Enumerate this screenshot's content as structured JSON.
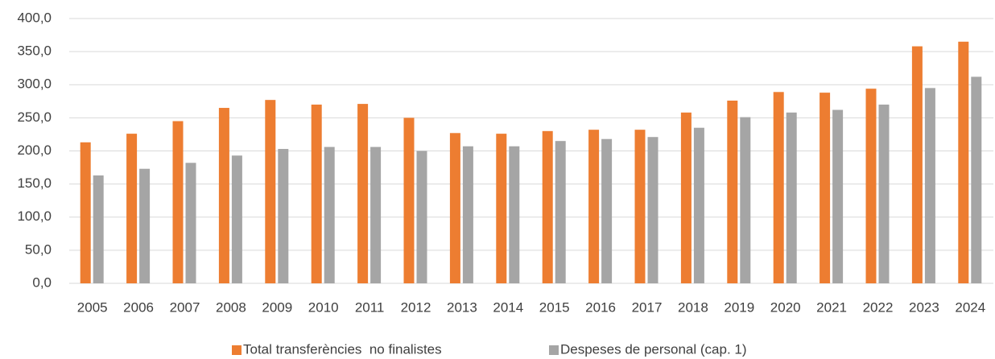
{
  "chart_data": {
    "type": "bar",
    "categories": [
      "2005",
      "2006",
      "2007",
      "2008",
      "2009",
      "2010",
      "2011",
      "2012",
      "2013",
      "2014",
      "2015",
      "2016",
      "2017",
      "2018",
      "2019",
      "2020",
      "2021",
      "2022",
      "2023",
      "2024"
    ],
    "series": [
      {
        "name": "Total transferències  no finalistes",
        "color": "#ed7d31",
        "values": [
          213,
          226,
          245,
          265,
          277,
          270,
          271,
          250,
          227,
          226,
          230,
          232,
          232,
          258,
          276,
          289,
          288,
          294,
          358,
          365
        ]
      },
      {
        "name": "Despeses de personal (cap. 1)",
        "color": "#a5a5a5",
        "values": [
          163,
          173,
          182,
          193,
          203,
          206,
          206,
          200,
          207,
          207,
          215,
          218,
          221,
          235,
          251,
          258,
          262,
          270,
          295,
          312
        ]
      }
    ],
    "ylim": [
      0,
      400
    ],
    "yticks": [
      {
        "value": 0,
        "label": "0,0"
      },
      {
        "value": 50,
        "label": "50,0"
      },
      {
        "value": 100,
        "label": "100,0"
      },
      {
        "value": 150,
        "label": "150,0"
      },
      {
        "value": 200,
        "label": "200,0"
      },
      {
        "value": 250,
        "label": "250,0"
      },
      {
        "value": 300,
        "label": "300,0"
      },
      {
        "value": 350,
        "label": "350,0"
      },
      {
        "value": 400,
        "label": "400,0"
      }
    ],
    "grid": true,
    "legend": "bottom"
  }
}
